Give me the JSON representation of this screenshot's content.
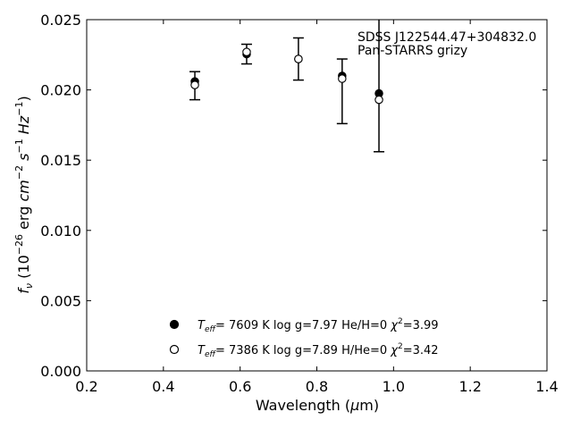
{
  "chart_data": {
    "type": "scatter",
    "title": "",
    "xlabel": {
      "pre": "Wavelength (",
      "sym": "μ",
      "post": "m)"
    },
    "ylabel": {
      "f": "f",
      "nu": "ν",
      "a": " (10",
      "e1": "−26",
      "b": " erg ",
      "cm": "cm",
      "e2": "−2",
      "s": " s",
      "e3": "−1",
      "hz": " Hz",
      "e4": "−1",
      "c": ")"
    },
    "xlim": [
      0.2,
      1.4
    ],
    "ylim": [
      0.0,
      0.025
    ],
    "xticks": [
      "0.2",
      "0.4",
      "0.6",
      "0.8",
      "1.0",
      "1.2",
      "1.4"
    ],
    "yticks": [
      "0.000",
      "0.005",
      "0.010",
      "0.015",
      "0.020",
      "0.025"
    ],
    "grid": false,
    "legend_position": "bottom-center",
    "annotation": [
      "SDSS J122544.47+304832.0",
      "Pan-STARRS grizy"
    ],
    "observed": {
      "x": [
        0.482,
        0.617,
        0.752,
        0.866,
        0.962
      ],
      "y": [
        0.0203,
        0.02255,
        0.0222,
        0.0199,
        0.0206
      ],
      "yerr": [
        0.001,
        0.0007,
        0.0015,
        0.0023,
        0.005
      ]
    },
    "series": [
      {
        "marker": "filled",
        "x": [
          0.482,
          0.617,
          0.752,
          0.866,
          0.962
        ],
        "y": [
          0.0206,
          0.02255,
          0.0222,
          0.021,
          0.01975
        ],
        "label": {
          "t": "T",
          "eff": "eff",
          "rest": "=  7609 K  log g=7.97  He/H=0  ",
          "chi": "χ",
          "two": "2",
          "val": "=3.99"
        }
      },
      {
        "marker": "open",
        "x": [
          0.482,
          0.617,
          0.752,
          0.866,
          0.962
        ],
        "y": [
          0.02035,
          0.0227,
          0.0222,
          0.0208,
          0.0193
        ],
        "label": {
          "t": "T",
          "eff": "eff",
          "rest": "=  7386 K  log g=7.89  H/He=0  ",
          "chi": "χ",
          "two": "2",
          "val": "=3.42"
        }
      }
    ]
  }
}
